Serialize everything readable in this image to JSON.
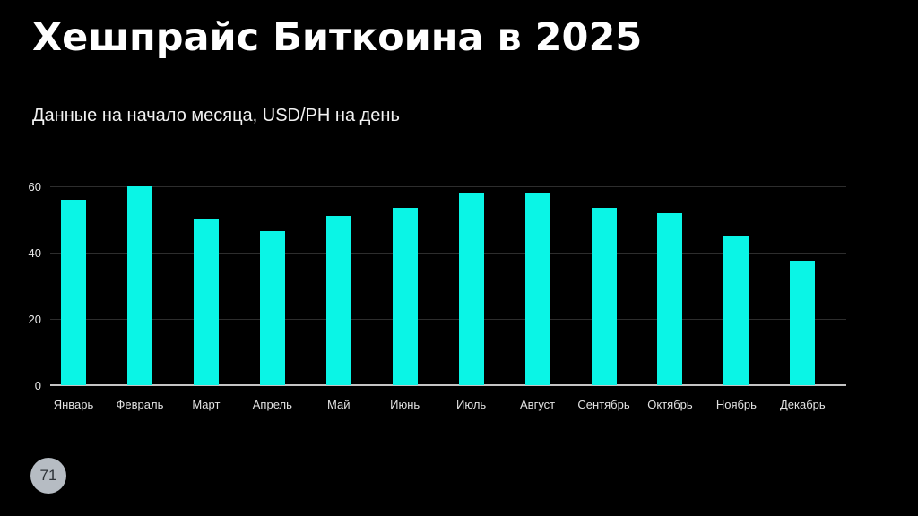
{
  "slide": {
    "title": "Хешпрайс Биткоина в 2025",
    "subtitle": "Данные на начало месяца, USD/PH на день",
    "page_number": "71",
    "background_color": "#000000",
    "title_color": "#ffffff",
    "badge_color": "#B6BCC3",
    "badge_text_color": "#2e3338"
  },
  "chart_data": {
    "type": "bar",
    "title": "Хешпрайс Биткоина в 2025",
    "subtitle": "Данные на начало месяца, USD/PH на день",
    "categories": [
      "Январь",
      "Февраль",
      "Март",
      "Апрель",
      "Май",
      "Июнь",
      "Июль",
      "Август",
      "Сентябрь",
      "Октябрь",
      "Ноябрь",
      "Декабрь"
    ],
    "values": [
      56,
      60,
      50,
      46.5,
      51,
      53.5,
      58,
      58,
      53.5,
      52,
      45,
      37.5
    ],
    "xlabel": "",
    "ylabel": "",
    "units": "USD/PH на день",
    "yticks": [
      0,
      20,
      40,
      60
    ],
    "ylim": [
      0,
      60
    ],
    "grid": true,
    "legend": false,
    "bar_color": "#0AF5E6",
    "gridline_color": "#2d2d2d",
    "axis_line_color": "#c4c4c4",
    "tick_label_color": "#e8e8e8"
  }
}
